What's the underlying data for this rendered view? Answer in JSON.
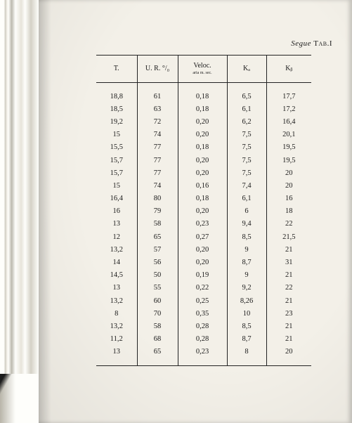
{
  "caption": {
    "segue": "Segue",
    "tab": "Tab.",
    "num": "I"
  },
  "headers": {
    "T": "T.",
    "UR": "U. R. °/₀",
    "V": "Veloc.",
    "Vsub": "aria m. sec.",
    "Ka": "Kₐ",
    "Kb": "Kᵦ"
  },
  "colWidths": {
    "T": 58,
    "UR": 58,
    "V": 70,
    "Ka": 56,
    "Kb": 64
  },
  "rows": [
    {
      "T": "18,8",
      "UR": "61",
      "V": "0,18",
      "Ka": "6,5",
      "Kb": "17,7"
    },
    {
      "T": "18,5",
      "UR": "63",
      "V": "0,18",
      "Ka": "6,1",
      "Kb": "17,2"
    },
    {
      "T": "19,2",
      "UR": "72",
      "V": "0,20",
      "Ka": "6,2",
      "Kb": "16,4"
    },
    {
      "T": "15",
      "UR": "74",
      "V": "0,20",
      "Ka": "7,5",
      "Kb": "20,1"
    },
    {
      "T": "15,5",
      "UR": "77",
      "V": "0,18",
      "Ka": "7,5",
      "Kb": "19,5"
    },
    {
      "T": "15,7",
      "UR": "77",
      "V": "0,20",
      "Ka": "7,5",
      "Kb": "19,5"
    },
    {
      "T": "15,7",
      "UR": "77",
      "V": "0,20",
      "Ka": "7,5",
      "Kb": "20"
    },
    {
      "T": "15",
      "UR": "74",
      "V": "0,16",
      "Ka": "7,4",
      "Kb": "20"
    },
    {
      "T": "16,4",
      "UR": "80",
      "V": "0,18",
      "Ka": "6,1",
      "Kb": "16"
    },
    {
      "T": "16",
      "UR": "79",
      "V": "0,20",
      "Ka": "6",
      "Kb": "18"
    },
    {
      "T": "13",
      "UR": "58",
      "V": "0,23",
      "Ka": "9,4",
      "Kb": "22"
    },
    {
      "T": "12",
      "UR": "65",
      "V": "0,27",
      "Ka": "8,5",
      "Kb": "21,5"
    },
    {
      "T": "13,2",
      "UR": "57",
      "V": "0,20",
      "Ka": "9",
      "Kb": "21"
    },
    {
      "T": "14",
      "UR": "56",
      "V": "0,20",
      "Ka": "8,7",
      "Kb": "31"
    },
    {
      "T": "14,5",
      "UR": "50",
      "V": "0,19",
      "Ka": "9",
      "Kb": "21"
    },
    {
      "T": "13",
      "UR": "55",
      "V": "0,22",
      "Ka": "9,2",
      "Kb": "22"
    },
    {
      "T": "13,2",
      "UR": "60",
      "V": "0,25",
      "Ka": "8,26",
      "Kb": "21"
    },
    {
      "T": "8",
      "UR": "70",
      "V": "0,35",
      "Ka": "10",
      "Kb": "23"
    },
    {
      "T": "13,2",
      "UR": "58",
      "V": "0,28",
      "Ka": "8,5",
      "Kb": "21"
    },
    {
      "T": "11,2",
      "UR": "68",
      "V": "0,28",
      "Ka": "8,7",
      "Kb": "21"
    },
    {
      "T": "13",
      "UR": "65",
      "V": "0,23",
      "Ka": "8",
      "Kb": "20"
    }
  ],
  "style": {
    "pageBg": "#f3f0e8",
    "ruleColor": "#222222",
    "font": "Times New Roman",
    "headerFontSize": 10,
    "bodyFontSize": 10.5,
    "rowHeight": 18.2
  }
}
